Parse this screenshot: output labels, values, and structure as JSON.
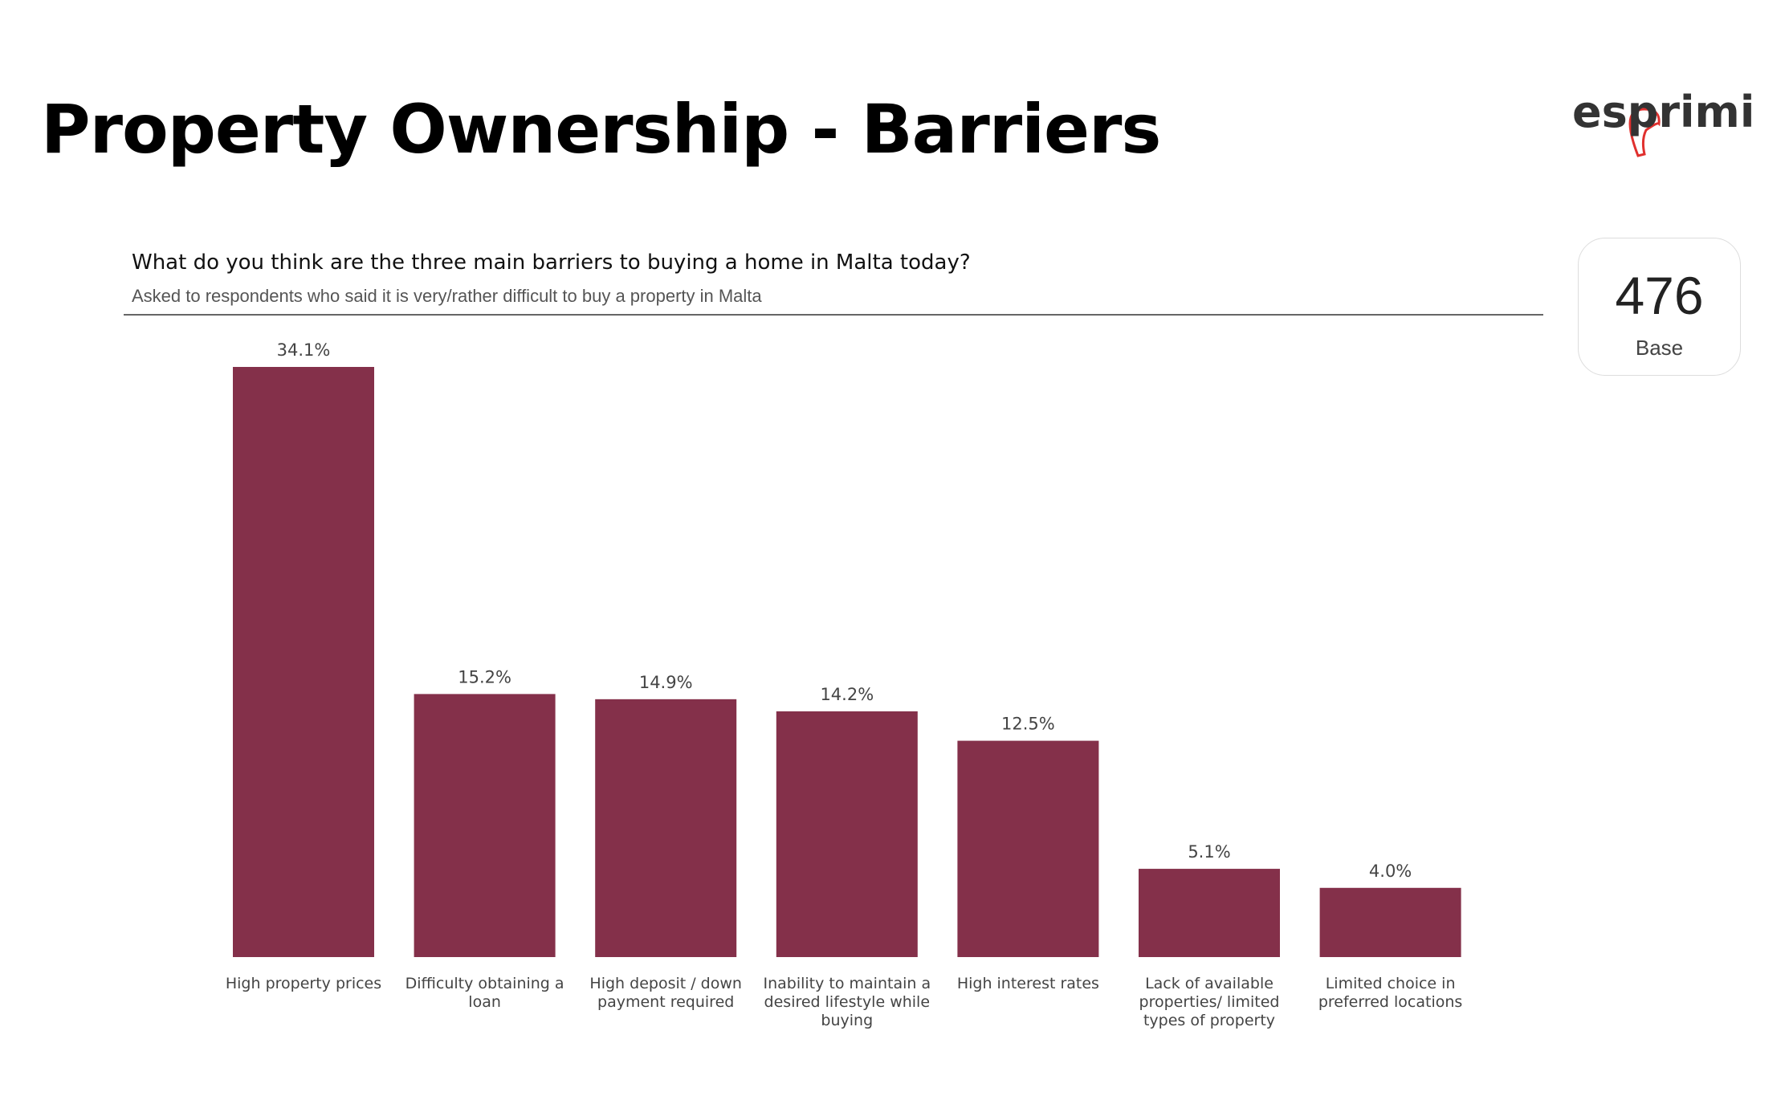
{
  "title": "Property Ownership - Barriers",
  "logo": "esprimi",
  "base": {
    "value": 476,
    "label": "Base"
  },
  "chart_data": {
    "type": "bar",
    "title": "What do you think are the three main barriers to buying a home in Malta today?",
    "subtitle": "Asked to respondents who said it is very/rather difficult to buy a property in Malta",
    "categories": [
      "High property prices",
      "Difficulty obtaining a loan",
      "High deposit / down payment required",
      "Inability to maintain a desired lifestyle while buying",
      "High interest rates",
      "Lack of available properties/ limited types of property",
      "Limited choice in preferred locations"
    ],
    "values": [
      34.1,
      15.2,
      14.9,
      14.2,
      12.5,
      5.1,
      4.0
    ],
    "value_labels": [
      "34.1%",
      "15.2%",
      "14.9%",
      "14.2%",
      "12.5%",
      "5.1%",
      "4.0%"
    ],
    "color": "#84304a"
  }
}
